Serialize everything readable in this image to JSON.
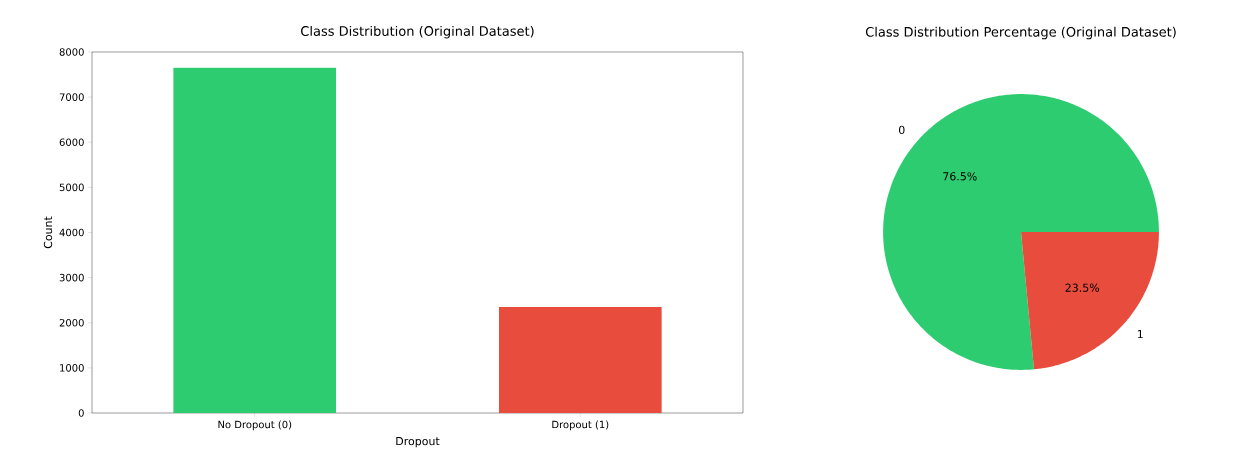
{
  "chart_data": [
    {
      "type": "bar",
      "title": "Class Distribution (Original Dataset)",
      "xlabel": "Dropout",
      "ylabel": "Count",
      "categories": [
        "No Dropout (0)",
        "Dropout (1)"
      ],
      "values": [
        7650,
        2350
      ],
      "colors": [
        "#2ecc71",
        "#e74c3c"
      ],
      "ylim": [
        0,
        8000
      ],
      "yticks": [
        0,
        1000,
        2000,
        3000,
        4000,
        5000,
        6000,
        7000,
        8000
      ]
    },
    {
      "type": "pie",
      "title": "Class Distribution Percentage (Original Dataset)",
      "categories": [
        "0",
        "1"
      ],
      "values": [
        76.5,
        23.5
      ],
      "colors": [
        "#2ecc71",
        "#e74c3c"
      ],
      "value_labels": [
        "76.5%",
        "23.5%"
      ]
    }
  ]
}
